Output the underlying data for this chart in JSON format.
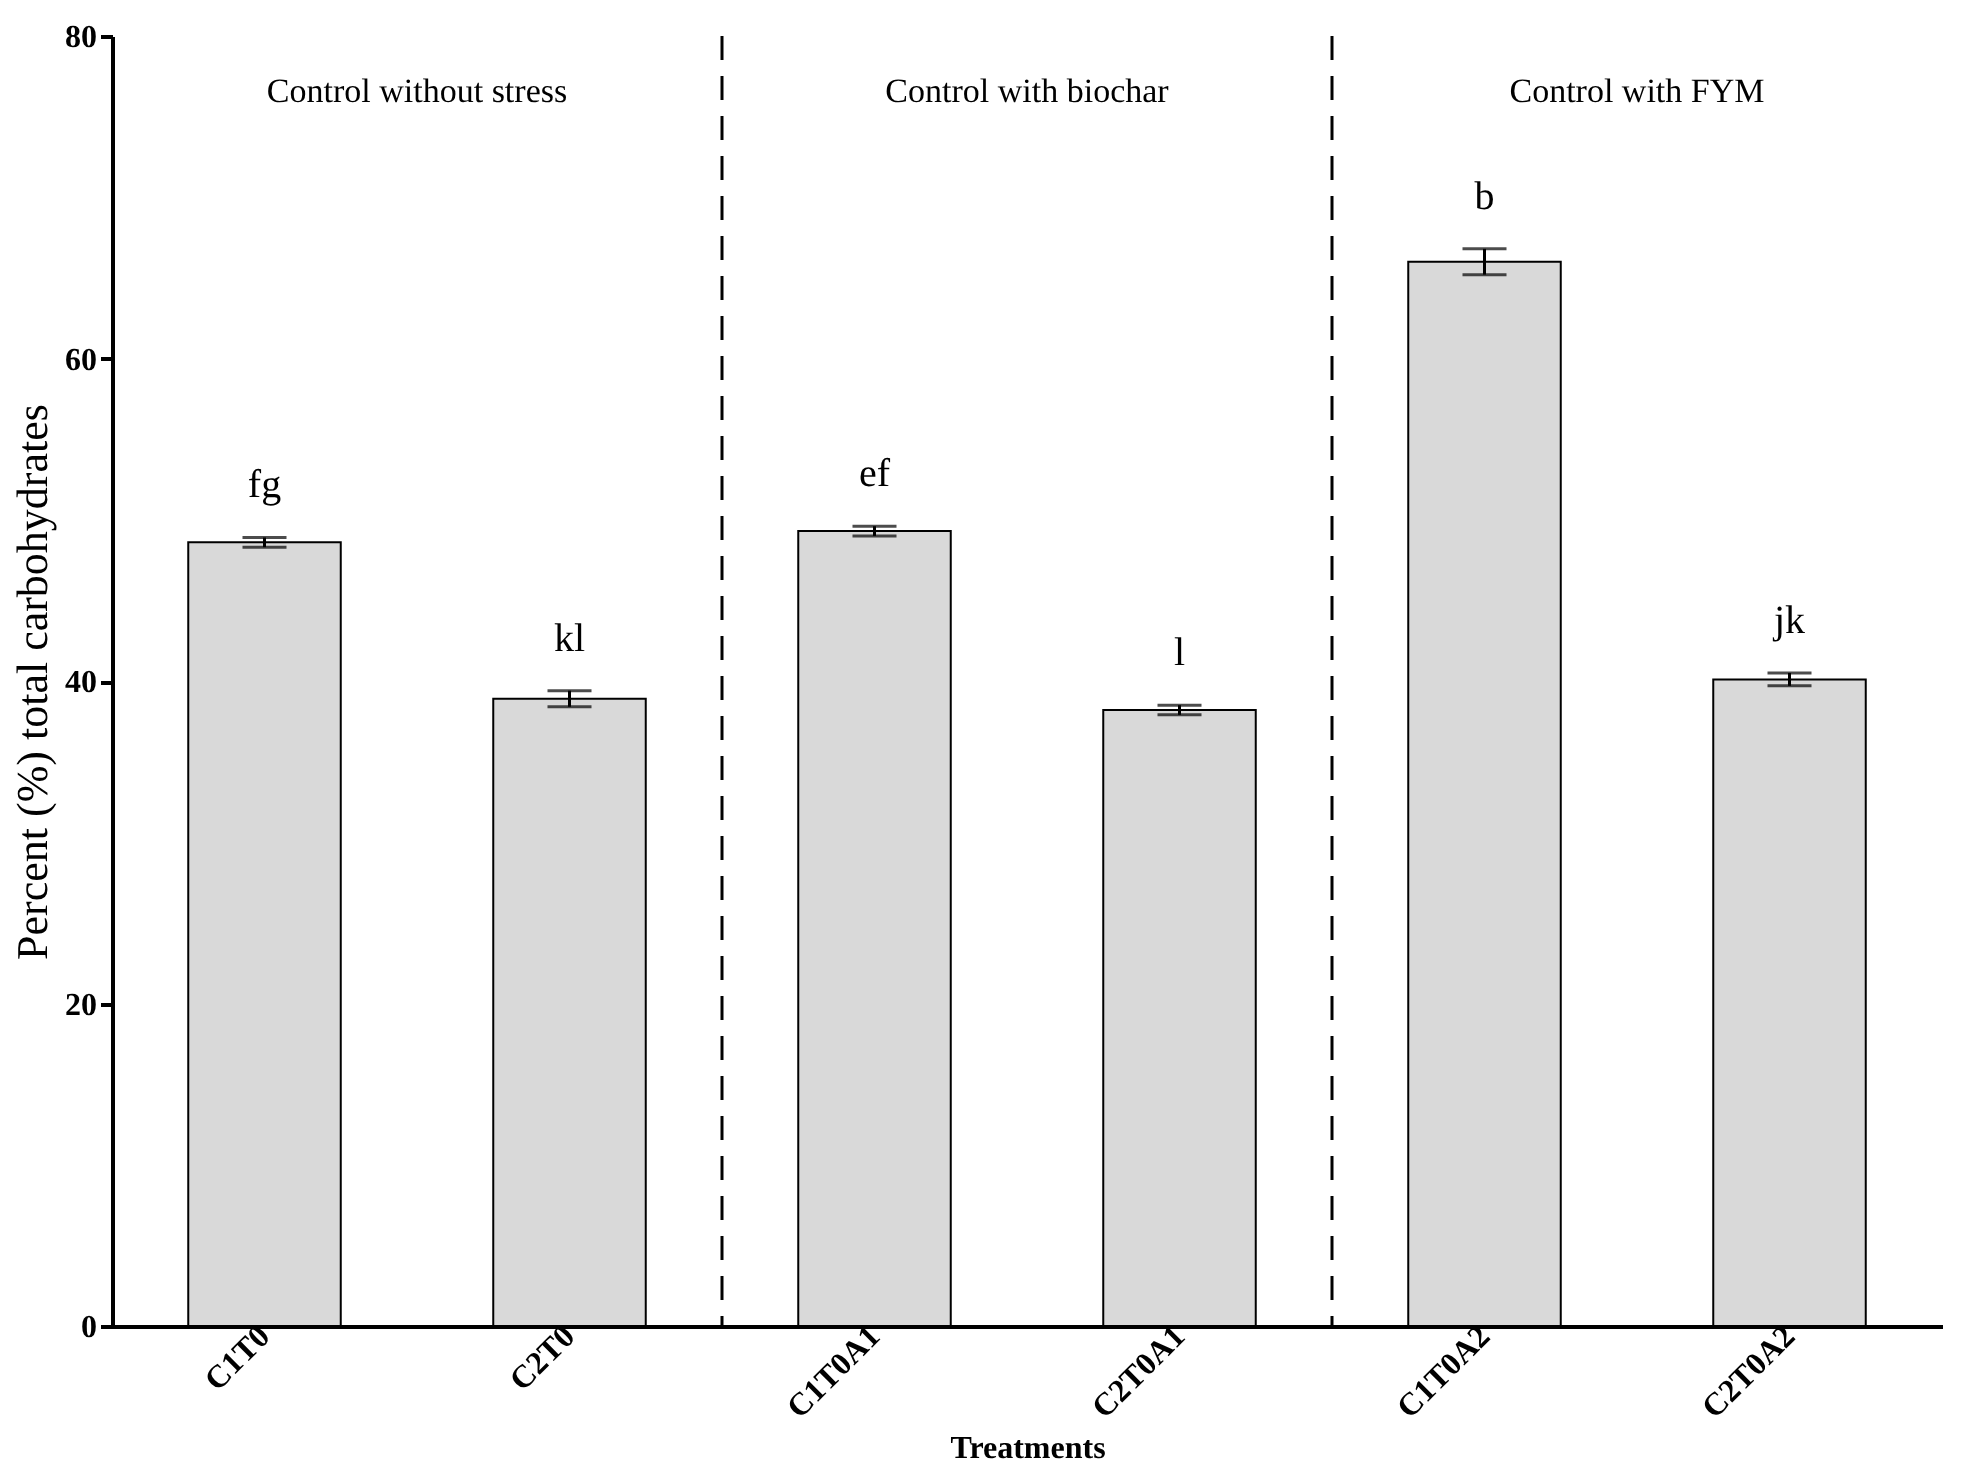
{
  "chart_data": {
    "type": "bar",
    "xlabel": "Treatments",
    "ylabel": "Percent (%) total carbohydrates",
    "categories": [
      "C1T0",
      "C2T0",
      "C1T0A1",
      "C2T0A1",
      "C1T0A2",
      "C2T0A2"
    ],
    "values": [
      48.6,
      38.9,
      49.3,
      38.2,
      66.0,
      40.1
    ],
    "errors": [
      0.3,
      0.5,
      0.3,
      0.3,
      0.8,
      0.4
    ],
    "color": "#d9d9d9",
    "ylim": [
      0,
      80
    ],
    "yticks": [
      0,
      20,
      40,
      60,
      80
    ],
    "grid": false,
    "annotations": [
      "Control without stress",
      "Control with biochar",
      "Control with FYM",
      {
        "text": "fg",
        "x": "C1T0",
        "y": 48.9
      },
      {
        "text": "kl",
        "x": "C2T0",
        "y": 39.4
      },
      {
        "text": "ef",
        "x": "C1T0A1",
        "y": 49.6
      },
      {
        "text": "l",
        "x": "C2T0A1",
        "y": 38.5
      },
      {
        "text": "b",
        "x": "C1T0A2",
        "y": 66.8
      },
      {
        "text": "jk",
        "x": "C2T0A2",
        "y": 40.5
      }
    ]
  }
}
